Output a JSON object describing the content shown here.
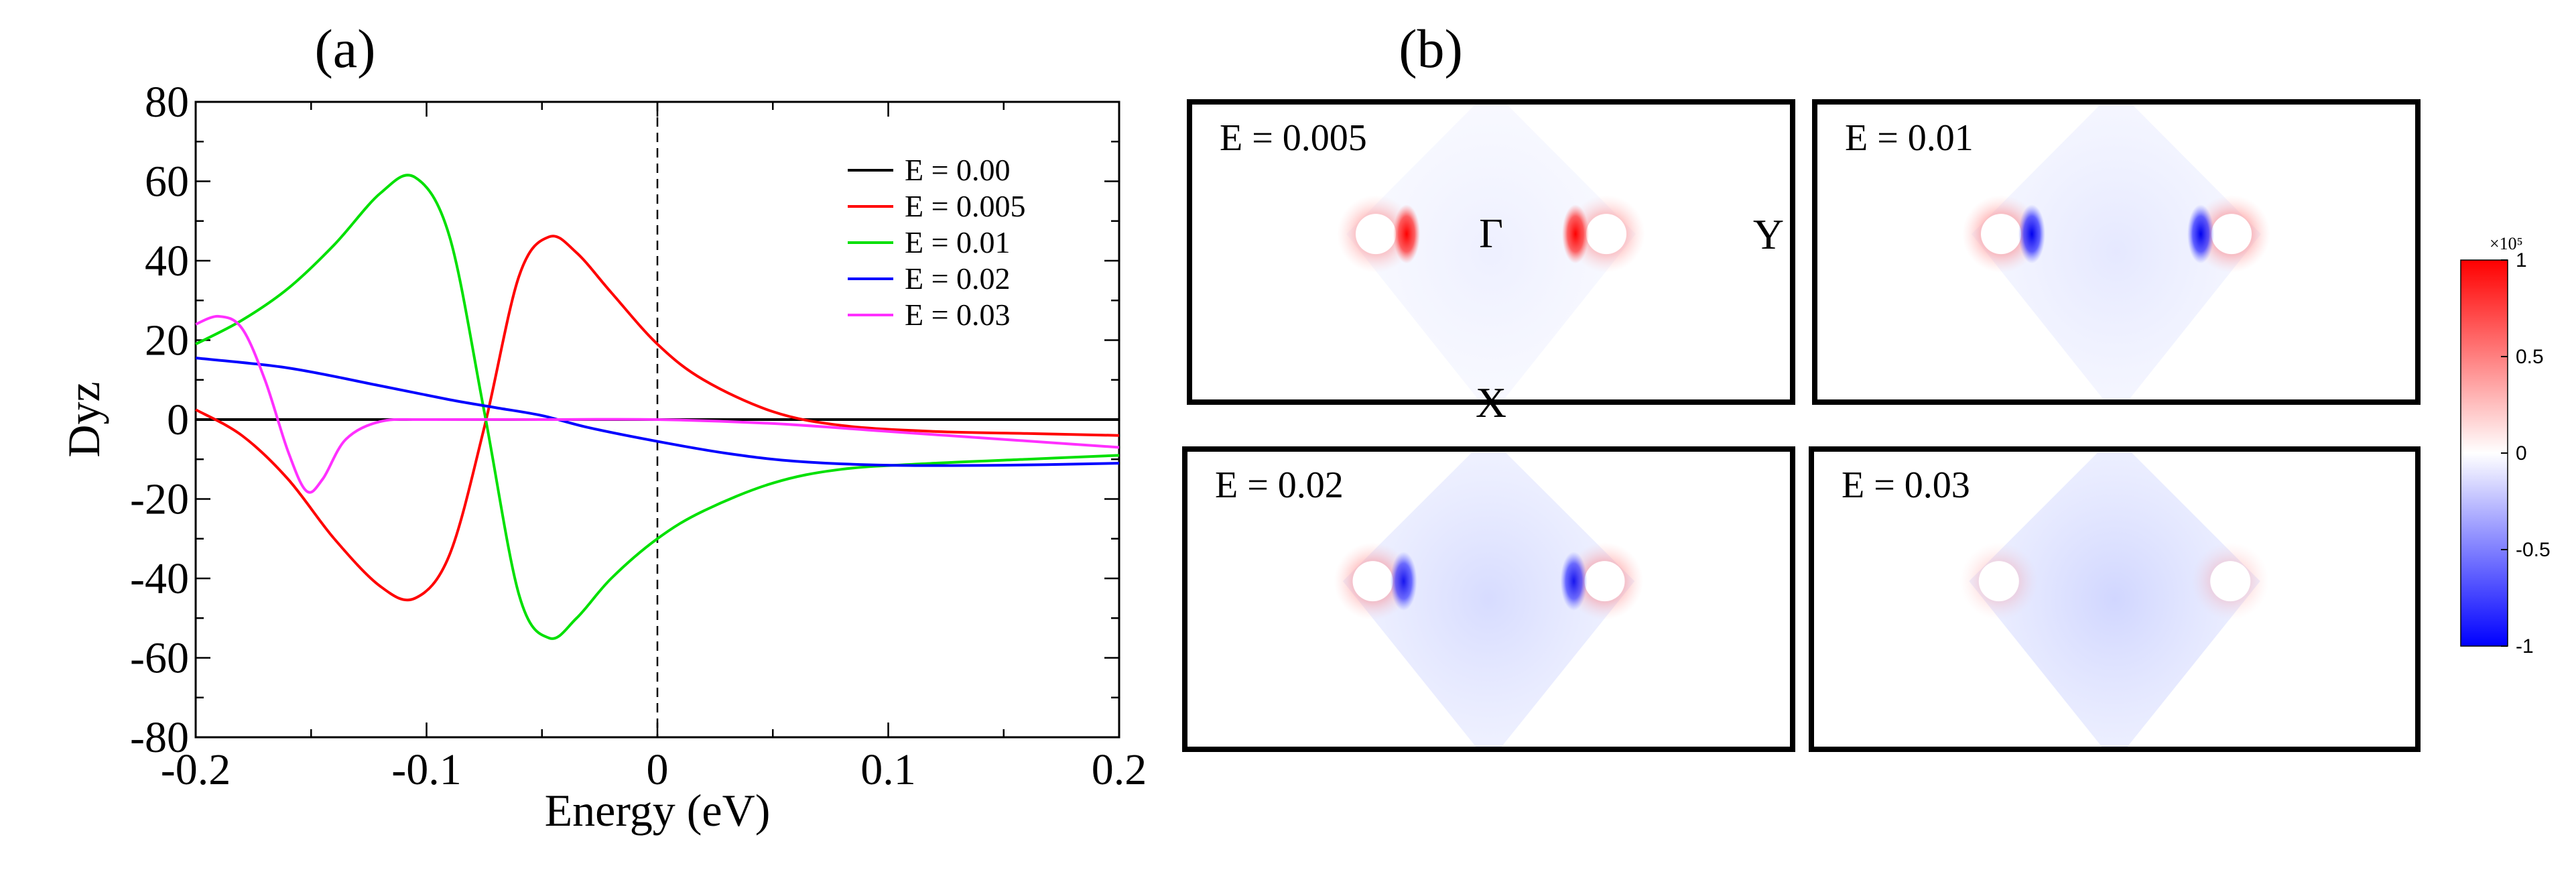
{
  "figure": {
    "panel_a_label": "(a)",
    "panel_b_label": "(b)"
  },
  "chart_data": [
    {
      "type": "line",
      "panel": "(a)",
      "title": "",
      "xlabel": "Energy (eV)",
      "ylabel": "Dyz",
      "xlim": [
        -0.2,
        0.2
      ],
      "ylim": [
        -80,
        80
      ],
      "x_ticks": [
        -0.2,
        -0.1,
        0,
        0.1,
        0.2
      ],
      "x_tick_labels": [
        "-0.2",
        "-0.1",
        "0",
        "0.1",
        "0.2"
      ],
      "y_ticks": [
        -80,
        -60,
        -40,
        -20,
        0,
        20,
        40,
        60,
        80
      ],
      "y_tick_labels": [
        "-80",
        "-60",
        "-40",
        "-20",
        "0",
        "20",
        "40",
        "60",
        "80"
      ],
      "reference_line": {
        "x": 0,
        "style": "dashed"
      },
      "legend_position": "top-right",
      "series": [
        {
          "name": "E = 0.00",
          "color": "#000000",
          "x": [
            -0.2,
            0.2
          ],
          "y": [
            0,
            0
          ]
        },
        {
          "name": "E = 0.005",
          "color": "#ff0000",
          "x": [
            -0.2,
            -0.18,
            -0.16,
            -0.14,
            -0.12,
            -0.105,
            -0.09,
            -0.075,
            -0.06,
            -0.047,
            -0.035,
            -0.02,
            0,
            0.02,
            0.05,
            0.08,
            0.12,
            0.16,
            0.2
          ],
          "y": [
            2.5,
            -4,
            -15,
            -30,
            -42,
            -45,
            -34,
            -2,
            36,
            46,
            42,
            32,
            19,
            10,
            2,
            -1.5,
            -3,
            -3.5,
            -4
          ]
        },
        {
          "name": "E = 0.01",
          "color": "#00e000",
          "x": [
            -0.2,
            -0.18,
            -0.16,
            -0.14,
            -0.12,
            -0.105,
            -0.09,
            -0.075,
            -0.06,
            -0.047,
            -0.035,
            -0.02,
            0,
            0.02,
            0.05,
            0.08,
            0.12,
            0.16,
            0.2
          ],
          "y": [
            19,
            25,
            33,
            44,
            57,
            61,
            46,
            2,
            -44,
            -55,
            -50,
            -40,
            -30,
            -23,
            -16,
            -12.5,
            -11,
            -10,
            -9
          ]
        },
        {
          "name": "E = 0.02",
          "color": "#0000ff",
          "x": [
            -0.2,
            -0.16,
            -0.12,
            -0.09,
            -0.07,
            -0.05,
            -0.03,
            0,
            0.03,
            0.06,
            0.1,
            0.15,
            0.2
          ],
          "y": [
            15.5,
            13,
            8.5,
            5,
            3,
            1,
            -2,
            -5.5,
            -8.5,
            -10.5,
            -11.5,
            -11.5,
            -11
          ]
        },
        {
          "name": "E = 0.03",
          "color": "#ff30ff",
          "x": [
            -0.2,
            -0.19,
            -0.18,
            -0.17,
            -0.16,
            -0.152,
            -0.145,
            -0.135,
            -0.12,
            -0.1,
            -0.05,
            0,
            0.05,
            0.1,
            0.15,
            0.2
          ],
          "y": [
            24,
            26,
            23,
            10,
            -8,
            -18,
            -15,
            -5,
            -0.5,
            0,
            0,
            0,
            -1,
            -3,
            -5,
            -7
          ]
        }
      ]
    },
    {
      "type": "heatmap",
      "panel": "(b)",
      "colorbar": {
        "range": [
          -1,
          1
        ],
        "scale_label": "×10⁵",
        "tick_labels": [
          "1",
          "0.5",
          "0",
          "-0.5",
          "-1"
        ],
        "colors": {
          "max": "#ff0000",
          "mid": "#ffffff",
          "min": "#0000ff"
        }
      },
      "k_labels": {
        "gamma": "Γ",
        "x": "X",
        "y": "Y"
      },
      "maps": [
        {
          "label": "E = 0.005",
          "inner": "red",
          "inner_strength": 1.0,
          "background": "faint-blue",
          "background_strength": 0.12,
          "halo_strength": 0.35
        },
        {
          "label": "E = 0.01",
          "inner": "blue",
          "inner_strength": 1.0,
          "background": "faint-blue",
          "background_strength": 0.18,
          "halo_strength": 0.4
        },
        {
          "label": "E = 0.02",
          "inner": "blue",
          "inner_strength": 0.9,
          "background": "light-blue",
          "background_strength": 0.28,
          "halo_strength": 0.35
        },
        {
          "label": "E = 0.03",
          "inner": "none",
          "inner_strength": 0.0,
          "background": "light-blue",
          "background_strength": 0.32,
          "halo_strength": 0.18
        }
      ]
    }
  ]
}
